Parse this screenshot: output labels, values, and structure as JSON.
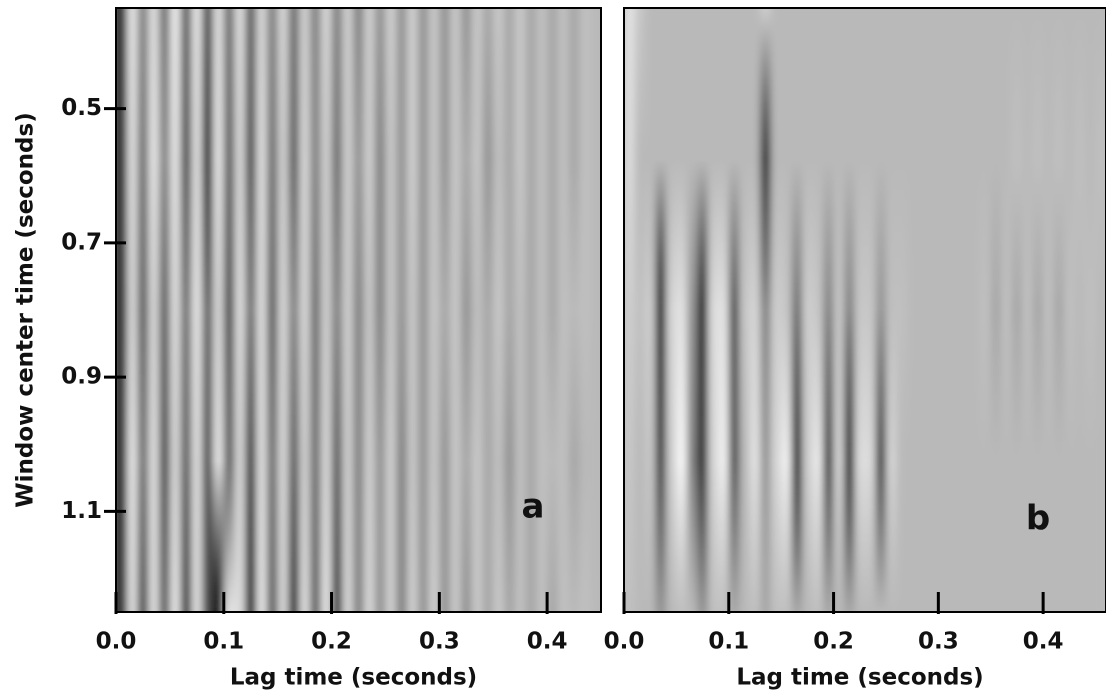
{
  "chart_data": [
    {
      "type": "heatmap",
      "xlabel": "Lag time (seconds)",
      "ylabel": "Window center time (seconds)",
      "annotation": "a",
      "xlim": [
        0,
        0.45
      ],
      "ylim": [
        0.35,
        1.25
      ],
      "y_inverted": true,
      "xticks": [
        {
          "value": 0,
          "label": "0.0"
        },
        0.1,
        0.2,
        0.3,
        0.4
      ],
      "yticks": [
        0.5,
        0.7,
        0.9,
        1.1
      ],
      "zlim": [
        -1,
        1
      ],
      "colormap": [
        "#000000",
        "#b9b9b9",
        "#ffffff"
      ],
      "x": [
        0,
        0.01,
        0.02,
        0.03,
        0.04,
        0.05,
        0.06,
        0.07,
        0.08,
        0.09,
        0.1,
        0.11,
        0.12,
        0.13,
        0.14,
        0.15,
        0.16,
        0.17,
        0.18,
        0.19,
        0.2,
        0.21,
        0.22,
        0.23,
        0.24,
        0.25,
        0.26,
        0.27,
        0.28,
        0.29,
        0.3,
        0.31,
        0.32,
        0.33,
        0.34,
        0.35,
        0.36,
        0.37,
        0.38,
        0.39,
        0.4,
        0.41,
        0.42,
        0.43,
        0.44
      ],
      "y": [
        0.35,
        0.575,
        0.8,
        1.025,
        1.25
      ],
      "z": [
        [
          -1,
          0.6,
          -0.3,
          0.5,
          -0.4,
          0.7,
          -0.5,
          0.6,
          -0.6,
          0.5,
          -0.4,
          0.5,
          -0.5,
          0.4,
          -0.3,
          0.4,
          -0.4,
          0.3,
          -0.3,
          0.4,
          -0.3,
          0.3,
          -0.3,
          0.3,
          -0.2,
          0.3,
          -0.2,
          0.3,
          -0.2,
          0.2,
          -0.2,
          0.2,
          -0.2,
          0.2,
          -0.1,
          0.2,
          -0.1,
          0.2,
          -0.1,
          0.1,
          -0.1,
          0.1,
          -0.1,
          0.1,
          0
        ],
        [
          -1,
          0.5,
          -0.4,
          0.6,
          -0.3,
          0.6,
          -0.6,
          0.5,
          -0.9,
          0.6,
          -0.5,
          0.4,
          -0.6,
          0.5,
          -0.4,
          0.3,
          -0.5,
          0.4,
          -0.3,
          0.3,
          -0.4,
          0.3,
          -0.2,
          0.3,
          -0.3,
          0.2,
          -0.2,
          0.3,
          -0.2,
          0.2,
          -0.2,
          0.2,
          -0.1,
          0.2,
          -0.2,
          0.1,
          -0.1,
          0.2,
          -0.1,
          0.1,
          -0.1,
          0.1,
          -0.1,
          0.1,
          0
        ],
        [
          -1,
          0.4,
          -0.5,
          0.4,
          -0.5,
          0.5,
          -0.4,
          0.6,
          -0.5,
          0.4,
          -0.6,
          0.5,
          -0.4,
          0.5,
          -0.5,
          0.4,
          -0.3,
          0.4,
          -0.4,
          0.3,
          -0.3,
          0.3,
          -0.3,
          0.2,
          -0.3,
          0.2,
          -0.2,
          0.2,
          -0.2,
          0.2,
          -0.1,
          0.2,
          -0.2,
          0.1,
          -0.1,
          0.2,
          -0.1,
          0.1,
          -0.1,
          0.1,
          -0.1,
          0.1,
          0,
          0.1,
          0
        ],
        [
          -1,
          0.6,
          -0.4,
          0.5,
          -0.6,
          0.4,
          -0.5,
          0.5,
          -0.6,
          0.6,
          -0.5,
          0.4,
          -0.7,
          0.5,
          -0.4,
          0.4,
          -0.5,
          0.3,
          -0.4,
          0.4,
          -0.5,
          0.3,
          -0.3,
          0.3,
          -0.2,
          0.3,
          -0.3,
          0.2,
          -0.2,
          0.2,
          -0.2,
          0.2,
          -0.1,
          0.2,
          -0.1,
          0.1,
          -0.2,
          0.1,
          -0.1,
          0.1,
          0,
          0.1,
          -0.1,
          0,
          0
        ],
        [
          -1,
          0.5,
          -0.6,
          0.5,
          -0.5,
          0.6,
          -0.7,
          0.5,
          -0.6,
          -1,
          0.6,
          0.5,
          -1,
          0.6,
          -0.5,
          0.4,
          -0.8,
          0.5,
          -0.5,
          0.6,
          -0.7,
          0.4,
          -0.3,
          0.4,
          -0.2,
          0.3,
          -0.3,
          0.3,
          -0.2,
          0.3,
          -0.2,
          0.2,
          -0.2,
          0.2,
          -0.1,
          0.2,
          -0.1,
          0.1,
          -0.1,
          0.1,
          -0.1,
          0.1,
          0,
          0.1,
          0
        ]
      ]
    },
    {
      "type": "heatmap",
      "xlabel": "Lag time (seconds)",
      "annotation": "b",
      "xlim": [
        0,
        0.46
      ],
      "ylim": [
        0.35,
        1.25
      ],
      "y_inverted": true,
      "xticks": [
        {
          "value": 0,
          "label": "0.0"
        },
        0.1,
        0.2,
        0.3,
        0.4
      ],
      "zlim": [
        -1,
        1
      ],
      "colormap": [
        "#000000",
        "#b9b9b9",
        "#ffffff"
      ],
      "x": [
        0,
        0.01,
        0.02,
        0.03,
        0.04,
        0.05,
        0.06,
        0.07,
        0.08,
        0.09,
        0.1,
        0.11,
        0.12,
        0.13,
        0.14,
        0.15,
        0.16,
        0.17,
        0.18,
        0.19,
        0.2,
        0.21,
        0.22,
        0.23,
        0.24,
        0.25,
        0.26,
        0.27,
        0.28,
        0.29,
        0.3,
        0.31,
        0.32,
        0.33,
        0.34,
        0.35,
        0.36,
        0.37,
        0.38,
        0.39,
        0.4,
        0.41,
        0.42,
        0.43,
        0.44,
        0.45
      ],
      "y": [
        0.35,
        0.575,
        0.8,
        1.025,
        1.25
      ],
      "z": [
        [
          0.6,
          0.2,
          0,
          0,
          0,
          0,
          0,
          0,
          0,
          0,
          0,
          0,
          0,
          0.3,
          0,
          0,
          0,
          0,
          0,
          0,
          0,
          0,
          0,
          0,
          0,
          0,
          0,
          0,
          0,
          0,
          0,
          0,
          0,
          0,
          0,
          0,
          0,
          0,
          0,
          0,
          0,
          0,
          0,
          0,
          0,
          0
        ],
        [
          0.5,
          0,
          0,
          0,
          0,
          0,
          0,
          0,
          0,
          0,
          0,
          0,
          0,
          -0.8,
          0,
          0,
          0,
          0,
          0,
          0,
          0,
          0,
          0,
          0,
          0,
          0,
          0,
          0,
          0,
          0,
          0,
          0,
          0,
          0,
          0,
          0,
          0,
          0.1,
          0,
          0.1,
          0,
          0.1,
          0,
          0.1,
          0,
          0.1
        ],
        [
          0.3,
          0.1,
          0.3,
          -1,
          0.4,
          0.6,
          -0.2,
          -0.9,
          0.5,
          0.6,
          -0.6,
          0.2,
          0.4,
          -0.3,
          0.3,
          0.2,
          -0.4,
          0.3,
          0.2,
          -0.3,
          0.2,
          -0.3,
          0.2,
          0.2,
          -0.2,
          0.1,
          0.1,
          0,
          0,
          0,
          0,
          0,
          0,
          0,
          0.1,
          -0.1,
          0.1,
          -0.1,
          0.1,
          -0.1,
          0.1,
          -0.1,
          0.1,
          0,
          0.1,
          0
        ],
        [
          0.2,
          0,
          0.2,
          -0.7,
          0.3,
          0.9,
          -0.3,
          -0.8,
          0.4,
          0.8,
          -0.6,
          0,
          0.6,
          -0.2,
          0.4,
          0.8,
          -0.9,
          0.3,
          0.7,
          -0.7,
          0.4,
          -0.9,
          0.5,
          0.5,
          -0.7,
          0.4,
          0,
          0,
          0,
          0,
          0,
          0,
          0,
          0,
          0,
          0,
          0,
          0,
          0,
          0,
          0,
          0,
          0,
          0,
          0,
          0
        ],
        [
          0.1,
          0,
          0,
          -0.2,
          0,
          0.1,
          0,
          -0.2,
          0.1,
          0.1,
          -0.1,
          0,
          0.1,
          -0.1,
          0.1,
          0.1,
          -0.1,
          0,
          0.1,
          -0.1,
          0,
          -0.1,
          0,
          0,
          0,
          0,
          0,
          0,
          0,
          0,
          0,
          0,
          0,
          0,
          0,
          0,
          0,
          0,
          0,
          0,
          0,
          0,
          0,
          0,
          0,
          0
        ]
      ]
    }
  ]
}
